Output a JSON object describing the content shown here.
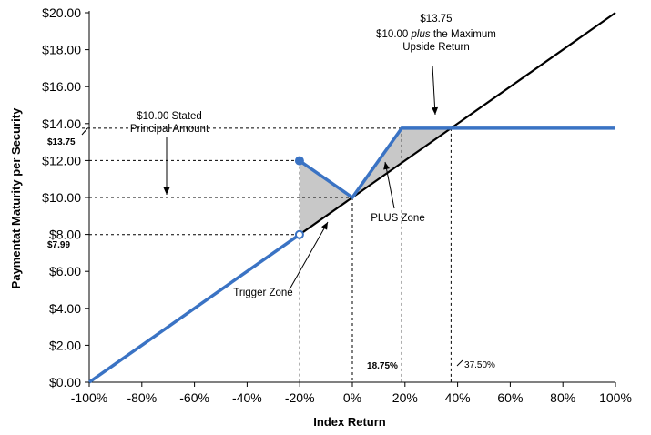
{
  "chart_data": {
    "type": "line",
    "title": "",
    "xlabel": "Index Return",
    "ylabel": "Paymentat Maturity per Security",
    "xlim": [
      -100,
      100
    ],
    "ylim": [
      0,
      20
    ],
    "x_ticks": [
      "-100%",
      "-80%",
      "-60%",
      "-40%",
      "-20%",
      "0%",
      "20%",
      "40%",
      "60%",
      "80%",
      "100%"
    ],
    "y_ticks": [
      "$0.00",
      "$2.00",
      "$4.00",
      "$6.00",
      "$8.00",
      "$10.00",
      "$12.00",
      "$14.00",
      "$16.00",
      "$18.00",
      "$20.00"
    ],
    "grid": false,
    "colors": {
      "payoff": "#3a73c4",
      "index": "#000000",
      "zone_fill": "#c8c8c8"
    },
    "series": [
      {
        "values": [
          [
            -100,
            0
          ],
          [
            -20.1,
            7.99
          ]
        ]
      },
      {
        "values": [
          [
            -20.1,
            11.99
          ],
          [
            0,
            10
          ],
          [
            18.75,
            13.75
          ],
          [
            100,
            13.75
          ]
        ]
      },
      {
        "values": [
          [
            -100,
            0
          ],
          [
            100,
            20
          ]
        ]
      }
    ],
    "markers": [
      {
        "x": -20.1,
        "y": 11.99,
        "style": "filled"
      },
      {
        "x": -20.1,
        "y": 7.99,
        "style": "open"
      }
    ],
    "reference_lines": {
      "horizontal": [
        7.99,
        10,
        12,
        13.75
      ],
      "vertical": [
        -20,
        0,
        18.75,
        37.5
      ]
    },
    "annotations": {
      "stated_principal_line1": "$10.00 Stated",
      "stated_principal_line2": "Principal Amount",
      "max_value": "$13.75",
      "max_desc_line1_a": "$10.00 ",
      "max_desc_line1_b": "plus",
      "max_desc_line1_c": " the Maximum",
      "max_desc_line2": "Upside Return",
      "value_1375": "$13.75",
      "value_799": "$7.99",
      "plus_zone": "PLUS Zone",
      "trigger_zone": "Trigger Zone",
      "pct_1875": "18.75%",
      "pct_375": "37.50%"
    }
  }
}
